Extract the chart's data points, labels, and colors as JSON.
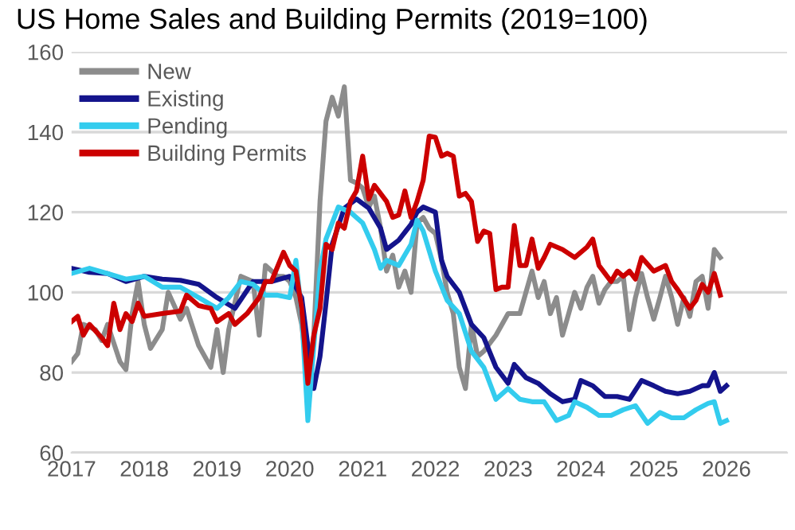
{
  "chart_data": {
    "type": "line",
    "title": "US Home Sales and Building Permits (2019=100)",
    "series": [
      {
        "name": "New",
        "color": "#8c8c8c",
        "x": [
          "2017-01",
          "2017-02",
          "2017-03",
          "2017-05",
          "2017-06",
          "2017-07",
          "2017-09",
          "2017-10",
          "2017-11",
          "2017-12",
          "2018-01",
          "2018-02",
          "2018-04",
          "2018-05",
          "2018-07",
          "2018-08",
          "2018-10",
          "2018-12",
          "2019-01",
          "2019-02",
          "2019-03",
          "2019-05",
          "2019-07",
          "2019-08",
          "2019-09",
          "2019-11",
          "2019-12",
          "2020-01",
          "2020-02",
          "2020-03",
          "2020-04",
          "2020-05",
          "2020-06",
          "2020-07",
          "2020-08",
          "2020-09",
          "2020-10",
          "2020-11",
          "2020-12",
          "2021-01",
          "2021-02",
          "2021-03",
          "2021-04",
          "2021-05",
          "2021-06",
          "2021-07",
          "2021-08",
          "2021-09",
          "2021-10",
          "2021-11",
          "2021-12",
          "2022-01",
          "2022-02",
          "2022-03",
          "2022-04",
          "2022-05",
          "2022-06",
          "2022-07",
          "2022-08",
          "2022-09",
          "2022-11",
          "2023-01",
          "2023-03",
          "2023-05",
          "2023-06",
          "2023-07",
          "2023-08",
          "2023-09",
          "2023-10",
          "2023-11",
          "2023-12",
          "2024-01",
          "2024-02",
          "2024-03",
          "2024-04",
          "2024-05",
          "2024-06",
          "2024-07",
          "2024-08",
          "2024-09",
          "2024-10",
          "2024-11",
          "2024-12",
          "2025-01",
          "2025-02",
          "2025-03",
          "2025-04",
          "2025-05",
          "2025-06",
          "2025-07",
          "2025-08",
          "2025-09",
          "2025-10",
          "2025-11",
          "2025-12"
        ],
        "values": [
          82.7,
          84.7,
          92,
          90.7,
          88,
          92,
          82.7,
          80.7,
          94.7,
          102.7,
          92,
          86,
          90.7,
          100,
          93.3,
          96,
          86.7,
          81.3,
          90.7,
          80,
          90.7,
          104,
          102.7,
          89.3,
          106.7,
          104,
          104,
          102.7,
          98.7,
          92,
          78.7,
          89.3,
          122.7,
          142.7,
          148.7,
          144,
          151.3,
          128,
          127.3,
          126,
          121.3,
          124,
          116,
          105.3,
          109.3,
          101.3,
          105.3,
          100,
          117.3,
          118.7,
          116,
          114.7,
          108,
          100,
          94.7,
          81.3,
          76,
          92,
          84,
          85.3,
          89.3,
          94.7,
          94.7,
          105.3,
          98.7,
          102.7,
          94.7,
          98.7,
          89.3,
          94.7,
          100,
          96,
          101.3,
          104,
          97.3,
          100.7,
          102.7,
          102.7,
          104,
          90.7,
          98.7,
          104.7,
          98.7,
          93.3,
          98.7,
          104,
          98.7,
          92,
          98.7,
          94,
          102.7,
          104,
          96,
          110.7,
          108.7
        ]
      },
      {
        "name": "Existing",
        "color": "#14148c",
        "x": [
          "2017-01",
          "2017-04",
          "2017-07",
          "2017-10",
          "2018-01",
          "2018-04",
          "2018-07",
          "2018-10",
          "2019-01",
          "2019-04",
          "2019-07",
          "2019-10",
          "2020-01",
          "2020-03",
          "2020-04",
          "2020-05",
          "2020-06",
          "2020-07",
          "2020-08",
          "2020-10",
          "2020-12",
          "2021-02",
          "2021-04",
          "2021-05",
          "2021-07",
          "2021-09",
          "2021-10",
          "2021-11",
          "2022-01",
          "2022-02",
          "2022-03",
          "2022-05",
          "2022-07",
          "2022-09",
          "2022-11",
          "2023-01",
          "2023-02",
          "2023-04",
          "2023-06",
          "2023-08",
          "2023-10",
          "2023-12",
          "2024-01",
          "2024-03",
          "2024-05",
          "2024-07",
          "2024-09",
          "2024-11",
          "2025-01",
          "2025-03",
          "2025-05",
          "2025-07",
          "2025-09",
          "2025-10",
          "2025-11",
          "2025-12",
          "2026-01"
        ],
        "values": [
          106,
          105,
          104.7,
          102.7,
          104,
          103.3,
          103,
          102,
          98.7,
          96,
          102.7,
          102.7,
          104,
          98.7,
          86.7,
          76,
          84,
          97.3,
          112,
          121,
          123.3,
          121,
          116,
          110.7,
          113,
          117,
          120,
          121.3,
          120,
          108,
          104,
          100,
          92,
          88.7,
          81.3,
          77.3,
          82,
          78.7,
          77.3,
          74.7,
          72.7,
          73.3,
          78,
          76.7,
          74,
          74,
          73.3,
          78,
          76.7,
          75.3,
          74.7,
          75.3,
          76.7,
          76.7,
          80,
          75.3,
          76.7
        ]
      },
      {
        "name": "Pending",
        "color": "#33ccee",
        "x": [
          "2017-01",
          "2017-04",
          "2017-07",
          "2017-10",
          "2018-01",
          "2018-04",
          "2018-07",
          "2018-10",
          "2019-01",
          "2019-03",
          "2019-05",
          "2019-07",
          "2019-09",
          "2019-11",
          "2020-01",
          "2020-02",
          "2020-03",
          "2020-04",
          "2020-05",
          "2020-06",
          "2020-07",
          "2020-09",
          "2020-11",
          "2021-01",
          "2021-03",
          "2021-04",
          "2021-05",
          "2021-07",
          "2021-09",
          "2021-10",
          "2021-11",
          "2022-01",
          "2022-03",
          "2022-05",
          "2022-07",
          "2022-09",
          "2022-11",
          "2023-01",
          "2023-03",
          "2023-05",
          "2023-07",
          "2023-09",
          "2023-11",
          "2023-12",
          "2024-02",
          "2024-04",
          "2024-06",
          "2024-08",
          "2024-10",
          "2024-12",
          "2025-02",
          "2025-04",
          "2025-06",
          "2025-08",
          "2025-10",
          "2025-11",
          "2025-12",
          "2026-01"
        ],
        "values": [
          104.7,
          106,
          104.7,
          103.3,
          104,
          101.3,
          101.3,
          98.7,
          96,
          98.7,
          102.7,
          102,
          99.3,
          99.3,
          98.7,
          108,
          94.7,
          68,
          86.7,
          105.3,
          113.3,
          121.3,
          120,
          117.3,
          110.7,
          106,
          108,
          106.7,
          112,
          118,
          115.3,
          105.3,
          98,
          94.7,
          85.3,
          81.3,
          73.3,
          76,
          73.3,
          72.7,
          72.7,
          68,
          69.3,
          72.7,
          71.3,
          69.3,
          69.3,
          70.7,
          71.7,
          67.3,
          70,
          68.7,
          68.7,
          70.7,
          72.3,
          72.7,
          67.3,
          68
        ]
      },
      {
        "name": "Building Permits",
        "color": "#cc0000",
        "x": [
          "2017-01",
          "2017-02",
          "2017-03",
          "2017-04",
          "2017-06",
          "2017-07",
          "2017-08",
          "2017-09",
          "2017-10",
          "2017-11",
          "2017-12",
          "2018-01",
          "2018-04",
          "2018-07",
          "2018-08",
          "2018-10",
          "2018-12",
          "2019-01",
          "2019-03",
          "2019-04",
          "2019-06",
          "2019-08",
          "2019-09",
          "2019-10",
          "2019-12",
          "2020-01",
          "2020-02",
          "2020-03",
          "2020-04",
          "2020-05",
          "2020-06",
          "2020-07",
          "2020-08",
          "2020-09",
          "2020-10",
          "2020-11",
          "2020-12",
          "2021-01",
          "2021-02",
          "2021-03",
          "2021-05",
          "2021-06",
          "2021-07",
          "2021-08",
          "2021-09",
          "2021-10",
          "2021-11",
          "2021-12",
          "2022-01",
          "2022-02",
          "2022-03",
          "2022-04",
          "2022-05",
          "2022-06",
          "2022-07",
          "2022-08",
          "2022-09",
          "2022-10",
          "2022-11",
          "2022-12",
          "2023-01",
          "2023-02",
          "2023-03",
          "2023-04",
          "2023-05",
          "2023-06",
          "2023-07",
          "2023-08",
          "2023-10",
          "2023-12",
          "2024-02",
          "2024-03",
          "2024-04",
          "2024-06",
          "2024-07",
          "2024-08",
          "2024-09",
          "2024-10",
          "2024-11",
          "2025-01",
          "2025-03",
          "2025-04",
          "2025-05",
          "2025-07",
          "2025-08",
          "2025-09",
          "2025-10",
          "2025-11",
          "2025-12"
        ],
        "values": [
          92.7,
          94,
          89.3,
          92,
          88.7,
          86.7,
          97.3,
          90.7,
          94.7,
          92.7,
          97.3,
          94,
          94.7,
          95.3,
          99.3,
          96.7,
          96,
          92.7,
          94.7,
          92,
          94.7,
          98.7,
          102.7,
          102.7,
          110,
          106.7,
          105.3,
          96,
          77.3,
          89.3,
          96,
          112,
          110.7,
          117.3,
          116,
          122.7,
          125.3,
          134,
          123.3,
          126.7,
          122.7,
          118.7,
          119.3,
          125.3,
          118.7,
          122.7,
          128,
          139,
          138.7,
          134,
          134.7,
          134,
          124,
          124.7,
          122.7,
          112.7,
          115.3,
          114.7,
          100.7,
          101.3,
          101.3,
          116.7,
          106.7,
          106.7,
          113.3,
          106,
          108.7,
          112,
          110.7,
          108.7,
          111.3,
          113.3,
          106.7,
          102.7,
          105.3,
          104,
          105.3,
          103.3,
          108.7,
          105.3,
          106.7,
          102.7,
          100.7,
          96,
          98,
          102,
          100,
          104.7,
          99.3
        ]
      }
    ],
    "xlim": [
      "2017-01",
      "2026-11"
    ],
    "xticks": [
      {
        "value": "2017",
        "label": "2017"
      },
      {
        "value": "2018",
        "label": "2018"
      },
      {
        "value": "2019",
        "label": "2019"
      },
      {
        "value": "2020",
        "label": "2020"
      },
      {
        "value": "2021",
        "label": "2021"
      },
      {
        "value": "2022",
        "label": "2022"
      },
      {
        "value": "2023",
        "label": "2023"
      },
      {
        "value": "2024",
        "label": "2024"
      },
      {
        "value": "2025",
        "label": "2025"
      },
      {
        "value": "2026",
        "label": "2026"
      }
    ],
    "ylim": [
      60,
      160
    ],
    "yticks": [
      60,
      80,
      100,
      120,
      140,
      160
    ],
    "grid": "y",
    "legend": "top left",
    "marker": "none",
    "line_style": "solid"
  }
}
